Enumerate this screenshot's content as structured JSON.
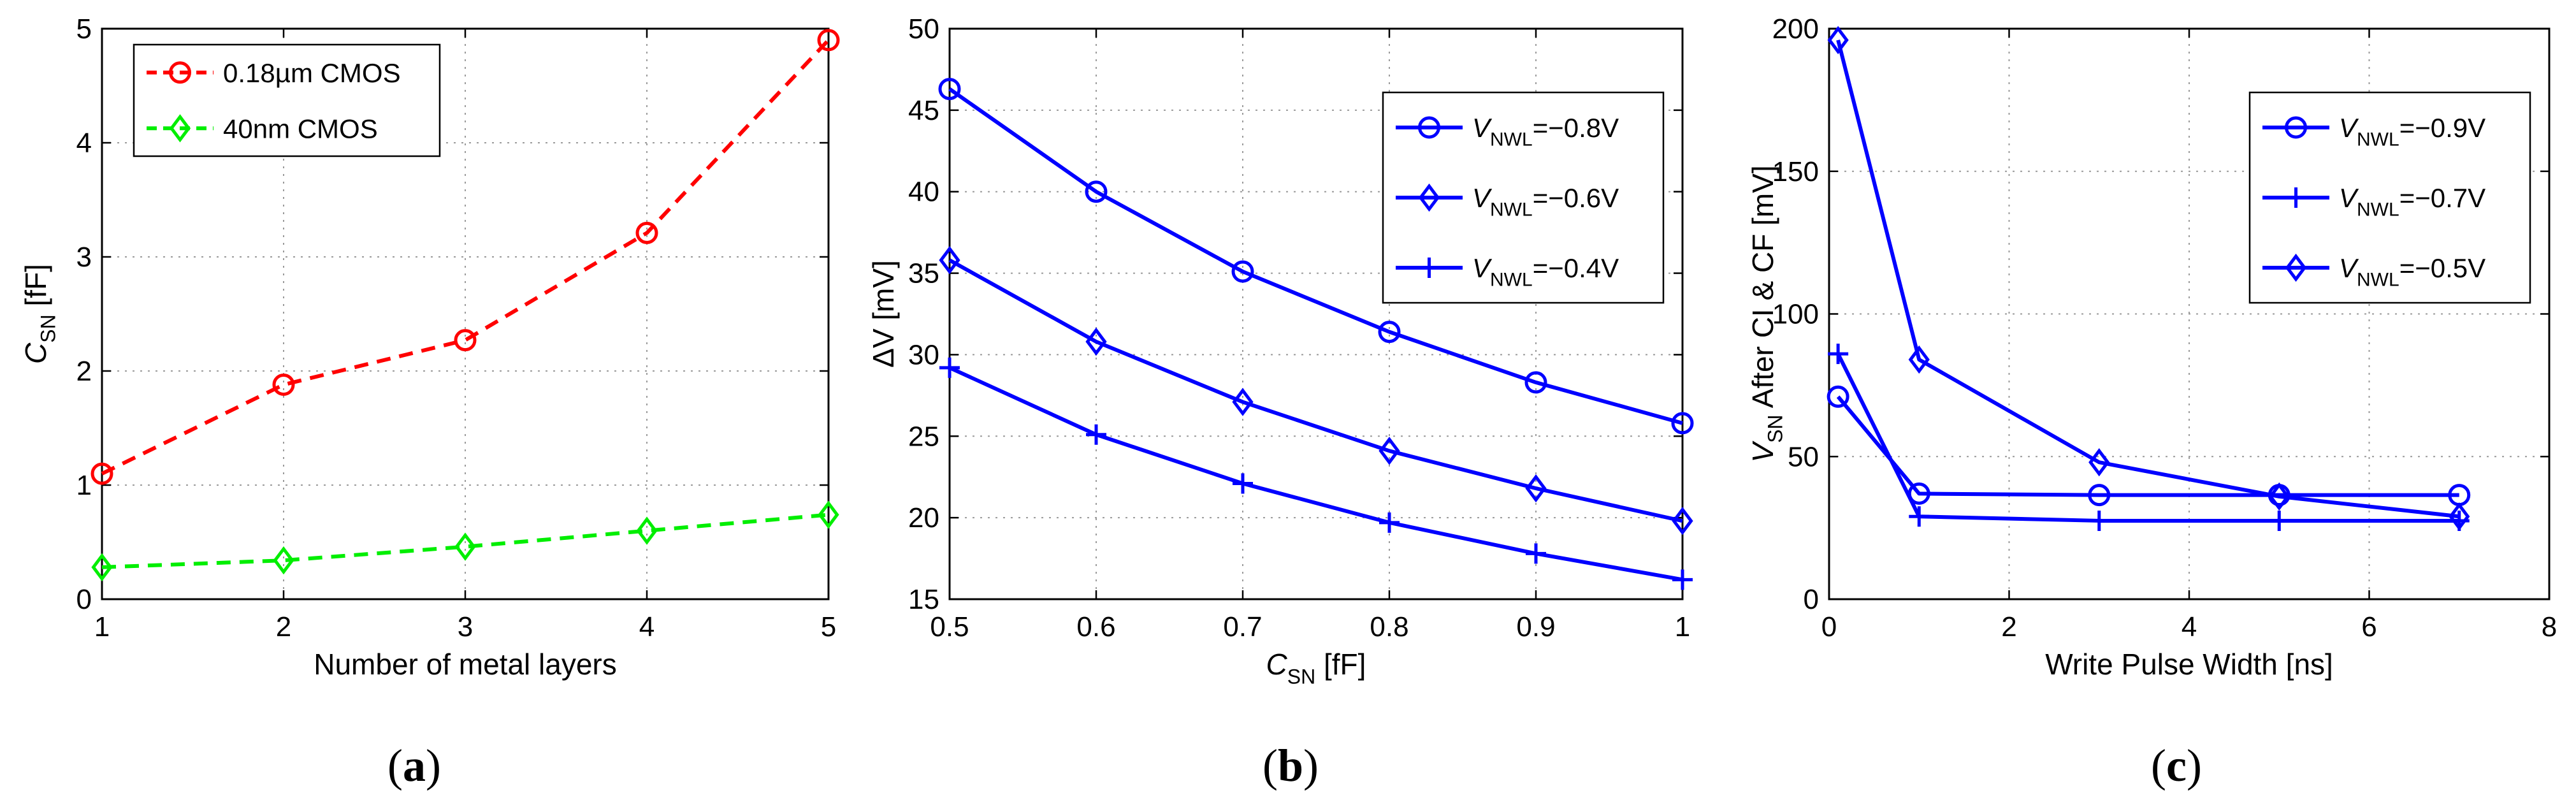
{
  "chart_data": [
    {
      "type": "line",
      "panel_label": "a",
      "xlabel": "Number of metal layers",
      "ylabel": {
        "main": "C",
        "sub": "SN",
        "unit": " [fF]"
      },
      "xlim": [
        1,
        5
      ],
      "ylim": [
        0,
        5
      ],
      "xticks": [
        1,
        2,
        3,
        4,
        5
      ],
      "yticks": [
        0,
        1,
        2,
        3,
        4,
        5
      ],
      "legend_position": "top-left",
      "series": [
        {
          "name": "0.18µm CMOS",
          "color": "#ff0000",
          "marker": "circle",
          "dashed": true,
          "x": [
            1,
            2,
            3,
            4,
            5
          ],
          "y": [
            1.1,
            1.88,
            2.27,
            3.21,
            4.9
          ]
        },
        {
          "name": "40nm CMOS",
          "color": "#00ee00",
          "marker": "diamond",
          "dashed": true,
          "x": [
            1,
            2,
            3,
            4,
            5
          ],
          "y": [
            0.28,
            0.34,
            0.46,
            0.6,
            0.74
          ]
        }
      ]
    },
    {
      "type": "line",
      "panel_label": "b",
      "xlabel": {
        "main": "C",
        "sub": "SN",
        "unit": " [fF]"
      },
      "ylabel": "ΔV [mV]",
      "xlim": [
        0.5,
        1
      ],
      "ylim": [
        15,
        50
      ],
      "xticks": [
        0.5,
        0.6,
        0.7,
        0.8,
        0.9,
        1
      ],
      "yticks": [
        15,
        20,
        25,
        30,
        35,
        40,
        45,
        50
      ],
      "legend_position": "top-right",
      "series": [
        {
          "name": {
            "main": "V",
            "sub": "NWL",
            "rest": "=−0.8V"
          },
          "color": "#0000ff",
          "marker": "circle",
          "dashed": false,
          "x": [
            0.5,
            0.6,
            0.7,
            0.8,
            0.9,
            1
          ],
          "y": [
            46.3,
            40.0,
            35.1,
            31.4,
            28.3,
            25.8
          ]
        },
        {
          "name": {
            "main": "V",
            "sub": "NWL",
            "rest": "=−0.6V"
          },
          "color": "#0000ff",
          "marker": "diamond",
          "dashed": false,
          "x": [
            0.5,
            0.6,
            0.7,
            0.8,
            0.9,
            1
          ],
          "y": [
            35.8,
            30.8,
            27.1,
            24.1,
            21.8,
            19.8
          ]
        },
        {
          "name": {
            "main": "V",
            "sub": "NWL",
            "rest": "=−0.4V"
          },
          "color": "#0000ff",
          "marker": "plus",
          "dashed": false,
          "x": [
            0.5,
            0.6,
            0.7,
            0.8,
            0.9,
            1
          ],
          "y": [
            29.2,
            25.1,
            22.1,
            19.7,
            17.8,
            16.2
          ]
        }
      ]
    },
    {
      "type": "line",
      "panel_label": "c",
      "xlabel": "Write Pulse Width [ns]",
      "ylabel": {
        "main": "V",
        "sub": "SN",
        "unit": " After CI & CF [mV]"
      },
      "xlim": [
        0,
        8
      ],
      "ylim": [
        0,
        200
      ],
      "xticks": [
        0,
        2,
        4,
        6,
        8
      ],
      "yticks": [
        0,
        50,
        100,
        150,
        200
      ],
      "legend_position": "top-right",
      "series": [
        {
          "name": {
            "main": "V",
            "sub": "NWL",
            "rest": "=−0.9V"
          },
          "color": "#0000ff",
          "marker": "circle",
          "dashed": false,
          "x": [
            0.1,
            1,
            3,
            5,
            7
          ],
          "y": [
            71,
            37,
            36.5,
            36.5,
            36.5
          ]
        },
        {
          "name": {
            "main": "V",
            "sub": "NWL",
            "rest": "=−0.7V"
          },
          "color": "#0000ff",
          "marker": "plus",
          "dashed": false,
          "x": [
            0.1,
            1,
            3,
            5,
            7
          ],
          "y": [
            86,
            29,
            27.5,
            27.5,
            27.5
          ]
        },
        {
          "name": {
            "main": "V",
            "sub": "NWL",
            "rest": "=−0.5V"
          },
          "color": "#0000ff",
          "marker": "diamond",
          "dashed": false,
          "x": [
            0.1,
            1,
            3,
            5,
            7
          ],
          "y": [
            196,
            84,
            48,
            36,
            29
          ]
        }
      ]
    }
  ]
}
